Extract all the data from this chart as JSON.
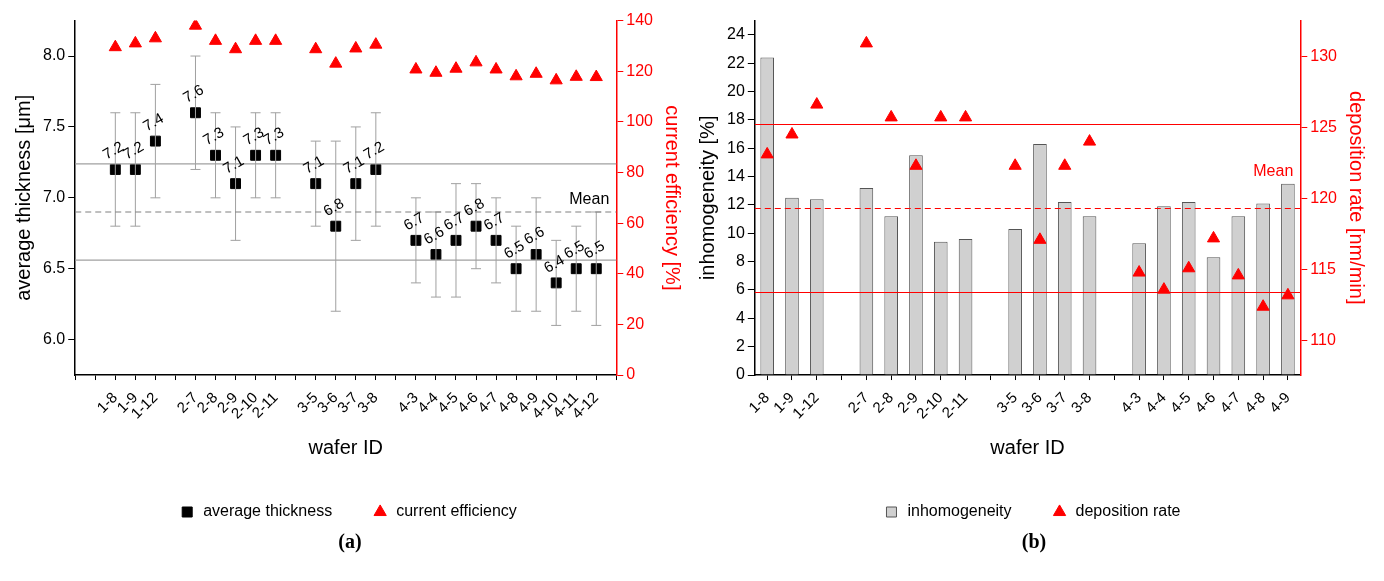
{
  "chart_data": [
    {
      "type": "scatter",
      "xlabel": "wafer ID",
      "ylabel": "average thickness [μm]",
      "y2label": "current efficiency [%]",
      "categories": [
        null,
        null,
        "1-8",
        "1-9",
        "1-12",
        null,
        "2-7",
        "2-8",
        "2-9",
        "2-10",
        "2-11",
        null,
        "3-5",
        "3-6",
        "3-7",
        "3-8",
        null,
        "4-3",
        "4-4",
        "4-5",
        "4-6",
        "4-7",
        "4-8",
        "4-9",
        "4-10",
        "4-11",
        "4-12",
        null
      ],
      "series": [
        {
          "name": "average thickness",
          "color": "#000000",
          "marker": "square",
          "values": [
            null,
            null,
            7.2,
            7.2,
            7.4,
            null,
            7.6,
            7.3,
            7.1,
            7.3,
            7.3,
            null,
            7.1,
            6.8,
            7.1,
            7.2,
            null,
            6.7,
            6.6,
            6.7,
            6.8,
            6.7,
            6.5,
            6.6,
            6.4,
            6.5,
            6.5,
            null
          ],
          "errors": [
            null,
            null,
            0.4,
            0.4,
            0.4,
            null,
            0.4,
            0.3,
            0.4,
            0.3,
            0.3,
            null,
            0.3,
            0.6,
            0.4,
            0.4,
            null,
            0.3,
            0.3,
            0.4,
            0.3,
            0.3,
            0.3,
            0.4,
            0.3,
            0.3,
            0.4,
            null
          ],
          "value_labels": [
            null,
            null,
            "7.2",
            "7.2",
            "7.4",
            null,
            "7.6",
            "7.3",
            "7.1",
            "7.3",
            "7.3",
            null,
            "7.1",
            "6.8",
            "7.1",
            "7.2",
            null,
            "6.7",
            "6.6",
            "6.7",
            "6.8",
            "6.7",
            "6.5",
            "6.6",
            "6.4",
            "6.5",
            "6.5",
            null
          ]
        },
        {
          "name": "current efficiency",
          "color": "#ff0000",
          "marker": "triangle",
          "axis": "y2",
          "values": [
            null,
            null,
            129.5,
            131,
            133,
            null,
            138,
            132,
            128.7,
            132,
            132,
            null,
            128.7,
            123,
            129,
            130.5,
            null,
            120.7,
            119.4,
            121,
            123.5,
            120.7,
            118,
            119,
            116.4,
            117.8,
            117.7,
            null
          ]
        }
      ],
      "ylim": [
        5.75,
        8.25
      ],
      "yticks": [
        {
          "value": 6,
          "label": "6.0"
        },
        6.5,
        {
          "value": 7,
          "label": "7.0"
        },
        7.5,
        {
          "value": 8,
          "label": "8.0"
        }
      ],
      "y2lim": [
        0,
        140
      ],
      "y2ticks": [
        0,
        20,
        40,
        60,
        80,
        100,
        120,
        140
      ],
      "ref_lines": [
        {
          "axis": "y",
          "value": 7.24,
          "label": null,
          "color": "#a0a0a0",
          "line_style": "solid"
        },
        {
          "axis": "y",
          "value": 6.9,
          "label": "Mean",
          "color": "#808080",
          "line_style": "dashed"
        },
        {
          "axis": "y",
          "value": 6.56,
          "label": null,
          "color": "#a0a0a0",
          "line_style": "solid"
        }
      ],
      "grid": false,
      "legend": "bottom",
      "annotations": [
        "(a)"
      ]
    },
    {
      "type": "bar",
      "xlabel": "wafer ID",
      "ylabel": "inhomogeneity [%]",
      "y2label": "deposition rate [nm/min]",
      "categories": [
        "1-8",
        "1-9",
        "1-12",
        null,
        "2-7",
        "2-8",
        "2-9",
        "2-10",
        "2-11",
        null,
        "3-5",
        "3-6",
        "3-7",
        "3-8",
        null,
        "4-3",
        "4-4",
        "4-5",
        "4-6",
        "4-7",
        "4-8",
        "4-9"
      ],
      "series": [
        {
          "name": "inhomogeneity",
          "color": "#d0d0d0",
          "values": [
            22.4,
            12.5,
            12.4,
            null,
            13.2,
            11.2,
            15.5,
            9.4,
            9.6,
            null,
            10.3,
            16.3,
            12.2,
            11.2,
            null,
            9.3,
            11.9,
            12.2,
            8.3,
            11.2,
            12.1,
            13.5
          ]
        },
        {
          "name": "deposition rate",
          "type": "scatter",
          "color": "#ff0000",
          "marker": "triangle",
          "axis": "y2",
          "values": [
            123.1,
            124.5,
            126.6,
            null,
            130.9,
            125.7,
            122.3,
            125.7,
            125.7,
            null,
            122.3,
            117.1,
            122.3,
            124.0,
            null,
            114.8,
            113.6,
            115.1,
            117.2,
            114.6,
            112.4,
            113.2
          ]
        }
      ],
      "ylim": [
        0,
        25
      ],
      "yticks": [
        0,
        2,
        4,
        6,
        8,
        10,
        12,
        14,
        16,
        18,
        20,
        22,
        24
      ],
      "y2lim": [
        107.6,
        132.5
      ],
      "y2ticks": [
        110,
        115,
        120,
        125,
        130
      ],
      "ref_lines": [
        {
          "axis": "y2",
          "value": 125.2,
          "label": null,
          "color": "#ff0000",
          "line_style": "solid"
        },
        {
          "axis": "y2",
          "value": 119.3,
          "label": "Mean",
          "color": "#ff0000",
          "line_style": "dashed"
        },
        {
          "axis": "y2",
          "value": 113.4,
          "label": null,
          "color": "#ff0000",
          "line_style": "solid"
        }
      ],
      "grid": false,
      "legend": "bottom",
      "annotations": [
        "(b)"
      ]
    }
  ]
}
